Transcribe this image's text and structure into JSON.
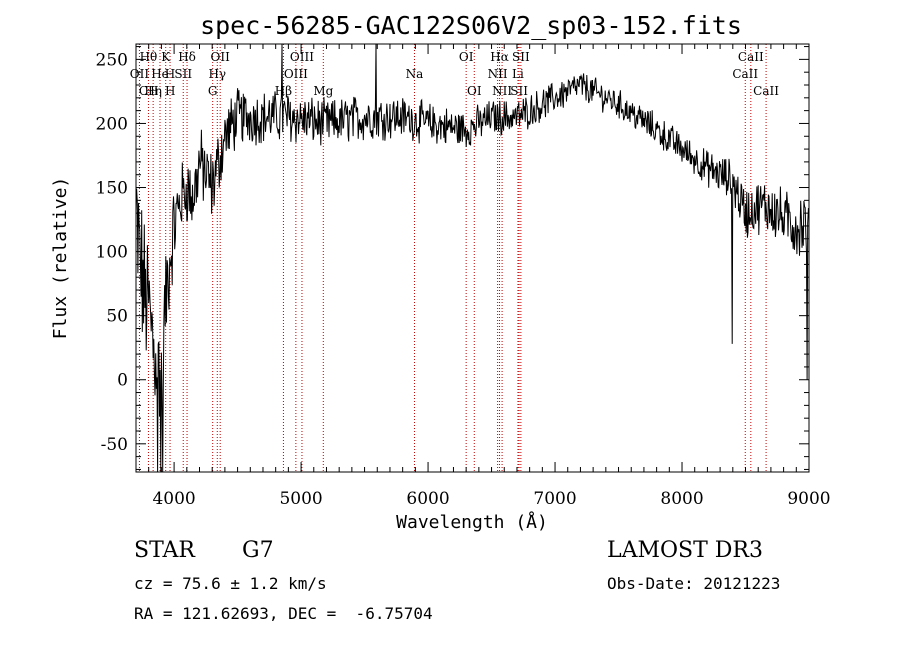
{
  "chart_data": {
    "type": "line",
    "title": "spec-56285-GAC122S06V2_sp03-152.fits",
    "xlabel": "Wavelength (Å)",
    "ylabel": "Flux (relative)",
    "xlim": [
      3700,
      9000
    ],
    "ylim": [
      -72,
      262
    ],
    "xticks": [
      4000,
      5000,
      6000,
      7000,
      8000,
      9000
    ],
    "yticks": [
      -50,
      0,
      50,
      100,
      150,
      200,
      250
    ],
    "line_labels": [
      {
        "text": "Hθ",
        "x": 3798,
        "row": 0
      },
      {
        "text": "K",
        "x": 3934,
        "row": 0
      },
      {
        "text": "Hδ",
        "x": 4102,
        "row": 0
      },
      {
        "text": "OII",
        "x": 4363,
        "row": 0
      },
      {
        "text": "OIII",
        "x": 5007,
        "row": 0
      },
      {
        "text": "OI",
        "x": 6300,
        "row": 0
      },
      {
        "text": "Hα",
        "x": 6563,
        "row": 0
      },
      {
        "text": "SII",
        "x": 6731,
        "row": 0
      },
      {
        "text": "CaII",
        "x": 8542,
        "row": 0
      },
      {
        "text": "OII",
        "x": 3727,
        "row": 1
      },
      {
        "text": "He",
        "x": 3889,
        "row": 1
      },
      {
        "text": "H",
        "x": 3968,
        "row": 1
      },
      {
        "text": "SII",
        "x": 4072,
        "row": 1
      },
      {
        "text": "Hγ",
        "x": 4340,
        "row": 1
      },
      {
        "text": "OIII",
        "x": 4959,
        "row": 1
      },
      {
        "text": "Na",
        "x": 5893,
        "row": 1
      },
      {
        "text": "NII",
        "x": 6548,
        "row": 1
      },
      {
        "text": "Li",
        "x": 6708,
        "row": 1
      },
      {
        "text": "CaII",
        "x": 8498,
        "row": 1
      },
      {
        "text": "CH",
        "x": 3800,
        "row": 2
      },
      {
        "text": "Hη",
        "x": 3835,
        "row": 2
      },
      {
        "text": "H",
        "x": 3970,
        "row": 2
      },
      {
        "text": "G",
        "x": 4304,
        "row": 2
      },
      {
        "text": "Hβ",
        "x": 4861,
        "row": 2
      },
      {
        "text": "Mg",
        "x": 5175,
        "row": 2
      },
      {
        "text": "OI",
        "x": 6364,
        "row": 2
      },
      {
        "text": "NII",
        "x": 6583,
        "row": 2
      },
      {
        "text": "SII",
        "x": 6717,
        "row": 2
      },
      {
        "text": "CaII",
        "x": 8662,
        "row": 2
      }
    ],
    "line_positions": [
      3727,
      3798,
      3835,
      3889,
      3934,
      3968,
      4072,
      4102,
      4304,
      4340,
      4363,
      4861,
      4959,
      5007,
      5175,
      5893,
      6300,
      6364,
      6548,
      6563,
      6583,
      6708,
      6717,
      6731,
      8498,
      8542,
      8662
    ],
    "spectrum_envelope": {
      "x": [
        3700,
        3760,
        3800,
        3850,
        3900,
        3950,
        4000,
        4050,
        4100,
        4150,
        4200,
        4300,
        4400,
        4500,
        4700,
        4900,
        5200,
        5500,
        5800,
        6000,
        6300,
        6500,
        6700,
        7000,
        7200,
        7500,
        7800,
        8000,
        8200,
        8300,
        8400,
        8500,
        8600,
        8700,
        8800,
        8900,
        9000
      ],
      "y": [
        120,
        70,
        55,
        20,
        10,
        80,
        120,
        140,
        150,
        140,
        170,
        150,
        190,
        205,
        205,
        205,
        200,
        205,
        205,
        200,
        195,
        205,
        205,
        220,
        230,
        215,
        195,
        180,
        165,
        160,
        155,
        130,
        135,
        135,
        125,
        120,
        120
      ],
      "noise": [
        60,
        50,
        50,
        45,
        45,
        35,
        30,
        25,
        25,
        25,
        25,
        25,
        22,
        20,
        18,
        18,
        16,
        16,
        14,
        14,
        13,
        12,
        12,
        11,
        10,
        10,
        11,
        11,
        12,
        13,
        15,
        18,
        18,
        20,
        20,
        22,
        25
      ]
    },
    "spikes": [
      {
        "x": 3870,
        "y": -72
      },
      {
        "x": 3895,
        "y": -72
      },
      {
        "x": 3910,
        "y": -72
      },
      {
        "x": 4850,
        "y": 262
      },
      {
        "x": 5590,
        "y": 262
      },
      {
        "x": 8395,
        "y": 28
      },
      {
        "x": 8985,
        "y": 0
      }
    ],
    "info": {
      "object_class": "STAR",
      "subclass": "G7",
      "survey": "LAMOST DR3",
      "cz": "cz = 75.6 ± 1.2 km/s",
      "obs_date": "Obs-Date: 20121223",
      "coords": "RA = 121.62693, DEC =  -6.75704"
    },
    "colors": {
      "spectrum": "#000000",
      "line_markers": "#c00000",
      "axes": "#000000"
    }
  }
}
